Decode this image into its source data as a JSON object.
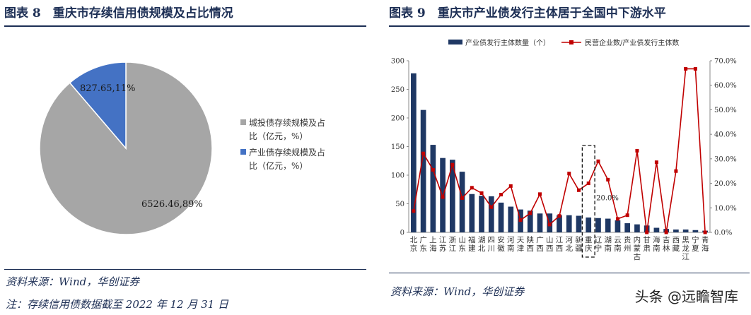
{
  "left_panel": {
    "title": "图表 8　重庆市存续信用债规模及占比情况",
    "source": "资料来源：Wind，华创证券",
    "note": "注：存续信用债数据截至 2022 年 12 月 31 日"
  },
  "right_panel": {
    "title": "图表 9　重庆市产业债发行主体居于全国中下游水平",
    "source": "资料来源：Wind，华创证券",
    "highlight_label": "20.0%"
  },
  "watermark": "头条 @远瞻智库",
  "colors": {
    "pie_gray": "#a6a6a6",
    "pie_blue": "#4472c4",
    "bar": "#1f3864",
    "line": "#c00000",
    "title": "#1d2f55"
  },
  "chart_data": [
    {
      "type": "pie",
      "slices": [
        {
          "label": "城投债存续规模及占比（亿元，%）",
          "value": 6526.46,
          "percent": 89,
          "data_label": "6526.46,89%"
        },
        {
          "label": "产业债存续规模及占比（亿元，%）",
          "value": 827.65,
          "percent": 11,
          "data_label": "827.65,11%"
        }
      ],
      "legend_placement": "right"
    },
    {
      "type": "bar",
      "categories": [
        "北京",
        "广东",
        "上海",
        "江苏",
        "浙江",
        "山东",
        "福建",
        "湖北",
        "四川",
        "安徽",
        "河南",
        "天津",
        "陕西",
        "广西",
        "山西",
        "江西",
        "河北",
        "新疆",
        "重庆",
        "辽宁",
        "湖南",
        "云南",
        "贵州",
        "内蒙古",
        "甘肃",
        "海南",
        "吉林",
        "西藏",
        "黑龙江",
        "宁夏",
        "青海"
      ],
      "series": [
        {
          "name": "产业债发行主体数量（个）",
          "axis": "left",
          "values": [
            278,
            214,
            153,
            130,
            127,
            106,
            67,
            64,
            63,
            52,
            45,
            40,
            38,
            33,
            33,
            30,
            30,
            29,
            26,
            25,
            24,
            21,
            16,
            14,
            12,
            8,
            6,
            5,
            5,
            4,
            3
          ]
        },
        {
          "name": "民营企业数/产业债发行主体数",
          "axis": "right",
          "values": [
            0.087,
            0.322,
            0.255,
            0.144,
            0.276,
            0.14,
            0.182,
            0.16,
            0.103,
            0.154,
            0.189,
            0.05,
            0.078,
            0.156,
            0.032,
            0.067,
            0.24,
            0.172,
            0.2,
            0.29,
            0.215,
            0.055,
            0.07,
            0.333,
            0.0,
            0.286,
            0.0,
            0.25,
            0.667,
            0.667,
            0.0
          ]
        }
      ],
      "ylim_left": [
        0,
        300
      ],
      "ylim_right": [
        0,
        0.7
      ],
      "yticks_left": [
        "0",
        "50",
        "100",
        "150",
        "200",
        "250",
        "300"
      ],
      "yticks_right": [
        "0.0%",
        "10.0%",
        "20.0%",
        "30.0%",
        "40.0%",
        "50.0%",
        "60.0%",
        "70.0%"
      ],
      "legend_placement": "top",
      "annotations": [
        "20.0%"
      ]
    }
  ]
}
